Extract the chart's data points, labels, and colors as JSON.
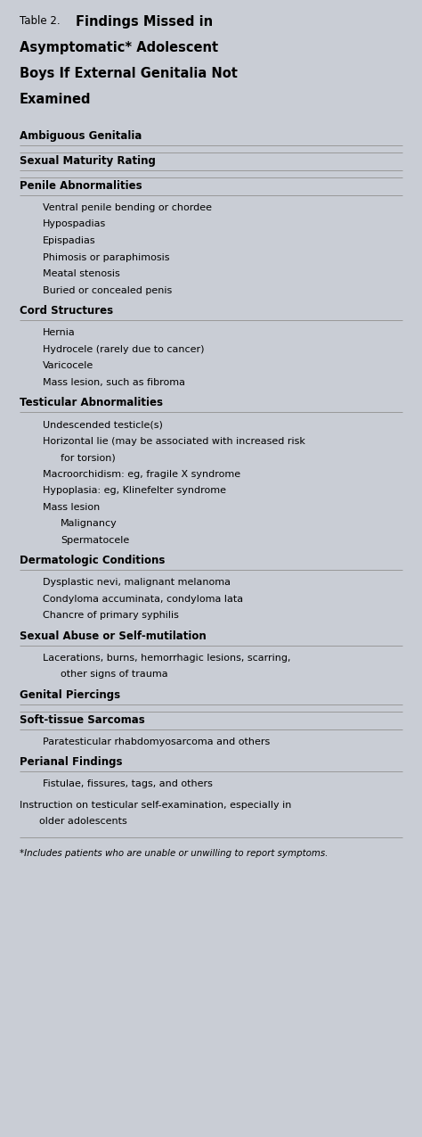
{
  "bg_color": "#c9cdd5",
  "footnote": "*Includes patients who are unable or unwilling to report symptoms.",
  "title_prefix": "Table 2.",
  "title_lines": [
    "Findings Missed in",
    "Asymptomatic* Adolescent",
    "Boys If External Genitalia Not",
    "Examined"
  ],
  "sections": [
    {
      "header": "Ambiguous Genitalia",
      "items": [],
      "line_after_header": true,
      "line_after_section": true,
      "header_is_body": false
    },
    {
      "header": "Sexual Maturity Rating",
      "items": [],
      "line_after_header": true,
      "line_after_section": true,
      "header_is_body": false
    },
    {
      "header": "Penile Abnormalities",
      "items": [
        {
          "text": "Ventral penile bending or chordee",
          "indent": 1
        },
        {
          "text": "Hypospadias",
          "indent": 1
        },
        {
          "text": "Epispadias",
          "indent": 1
        },
        {
          "text": "Phimosis or paraphimosis",
          "indent": 1
        },
        {
          "text": "Meatal stenosis",
          "indent": 1
        },
        {
          "text": "Buried or concealed penis",
          "indent": 1
        }
      ],
      "line_after_header": true,
      "line_after_section": false,
      "header_is_body": false
    },
    {
      "header": "Cord Structures",
      "items": [
        {
          "text": "Hernia",
          "indent": 1
        },
        {
          "text": "Hydrocele (rarely due to cancer)",
          "indent": 1
        },
        {
          "text": "Varicocele",
          "indent": 1
        },
        {
          "text": "Mass lesion, such as fibroma",
          "indent": 1
        }
      ],
      "line_after_header": true,
      "line_after_section": false,
      "header_is_body": false
    },
    {
      "header": "Testicular Abnormalities",
      "items": [
        {
          "text": "Undescended testicle(s)",
          "indent": 1
        },
        {
          "text": "Horizontal lie (may be associated with increased risk\n  for torsion)",
          "indent": 1
        },
        {
          "text": "Macroorchidism: eg, fragile X syndrome",
          "indent": 1
        },
        {
          "text": "Hypoplasia: eg, Klinefelter syndrome",
          "indent": 1
        },
        {
          "text": "Mass lesion",
          "indent": 1
        },
        {
          "text": "Malignancy",
          "indent": 2
        },
        {
          "text": "Spermatocele",
          "indent": 2
        }
      ],
      "line_after_header": true,
      "line_after_section": false,
      "header_is_body": false
    },
    {
      "header": "Dermatologic Conditions",
      "items": [
        {
          "text": "Dysplastic nevi, malignant melanoma",
          "indent": 1
        },
        {
          "text": "Condyloma accuminata, condyloma lata",
          "indent": 1
        },
        {
          "text": "Chancre of primary syphilis",
          "indent": 1
        }
      ],
      "line_after_header": true,
      "line_after_section": false,
      "header_is_body": false
    },
    {
      "header": "Sexual Abuse or Self-mutilation",
      "items": [
        {
          "text": "Lacerations, burns, hemorrhagic lesions, scarring,\n    other signs of trauma",
          "indent": 1
        }
      ],
      "line_after_header": true,
      "line_after_section": false,
      "header_is_body": false
    },
    {
      "header": "Genital Piercings",
      "items": [],
      "line_after_header": true,
      "line_after_section": true,
      "header_is_body": false
    },
    {
      "header": "Soft-tissue Sarcomas",
      "items": [
        {
          "text": "Paratesticular rhabdomyosarcoma and others",
          "indent": 1
        }
      ],
      "line_after_header": true,
      "line_after_section": false,
      "header_is_body": false
    },
    {
      "header": "Perianal Findings",
      "items": [
        {
          "text": "Fistulae, fissures, tags, and others",
          "indent": 1
        }
      ],
      "line_after_header": true,
      "line_after_section": false,
      "header_is_body": false
    },
    {
      "header": "Instruction on testicular self-examination, especially in\n  older adolescents",
      "items": [],
      "line_after_header": false,
      "line_after_section": true,
      "header_is_body": true
    }
  ]
}
